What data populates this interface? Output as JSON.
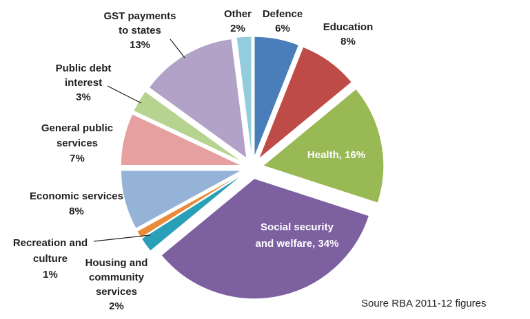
{
  "chart_data": {
    "type": "pie",
    "style": "exploded",
    "series": [
      {
        "label_lines": [
          "Defence",
          "6%"
        ],
        "value": 6,
        "color": "#4a7ebb"
      },
      {
        "label_lines": [
          "Education",
          "8%"
        ],
        "value": 8,
        "color": "#be4b48"
      },
      {
        "label_lines": [
          "Health, 16%"
        ],
        "value": 16,
        "color": "#98b954"
      },
      {
        "label_lines": [
          "Social security",
          "and welfare, 34%"
        ],
        "value": 34,
        "color": "#7d60a0"
      },
      {
        "label_lines": [
          "Housing and",
          "community",
          "services",
          "2%"
        ],
        "value": 2,
        "color": "#2aa0b8"
      },
      {
        "label_lines": [
          "Recreation and",
          "culture",
          "1%"
        ],
        "value": 1,
        "color": "#e88b3a"
      },
      {
        "label_lines": [
          "Economic services",
          "8%"
        ],
        "value": 8,
        "color": "#95b3d7"
      },
      {
        "label_lines": [
          "General public",
          "services",
          "7%"
        ],
        "value": 7,
        "color": "#e6a0a0"
      },
      {
        "label_lines": [
          "Public debt",
          "interest",
          "3%"
        ],
        "value": 3,
        "color": "#b6d48f"
      },
      {
        "label_lines": [
          "GST payments",
          "to states",
          "13%"
        ],
        "value": 13,
        "color": "#b3a2c7"
      },
      {
        "label_lines": [
          "Other",
          "2%"
        ],
        "value": 2,
        "color": "#93cddd"
      }
    ],
    "source_note": "Soure RBA 2011-12 figures"
  }
}
